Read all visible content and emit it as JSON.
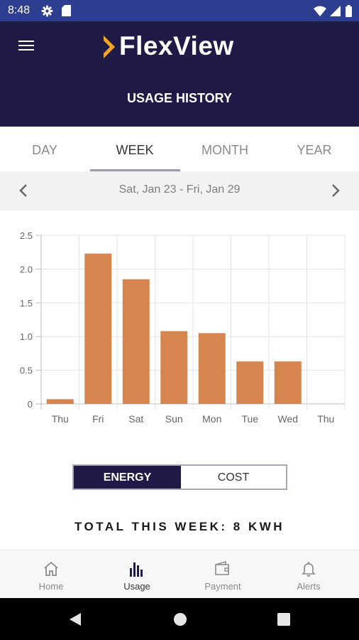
{
  "status_bar": {
    "time": "8:48"
  },
  "header": {
    "logo_text": "FlexView",
    "title": "USAGE HISTORY"
  },
  "tabs": [
    {
      "label": "DAY",
      "active": false
    },
    {
      "label": "WEEK",
      "active": true
    },
    {
      "label": "MONTH",
      "active": false
    },
    {
      "label": "YEAR",
      "active": false
    }
  ],
  "date_range": "Sat, Jan 23 - Fri, Jan 29",
  "chart_data": {
    "type": "bar",
    "categories": [
      "Thu",
      "Fri",
      "Sat",
      "Sun",
      "Mon",
      "Tue",
      "Wed",
      "Thu"
    ],
    "values": [
      0.07,
      2.23,
      1.85,
      1.08,
      1.05,
      0.63,
      0.63,
      null
    ],
    "yticks": [
      "0",
      "0.5",
      "1.0",
      "1.5",
      "2.0",
      "2.5"
    ],
    "ylim": [
      0,
      2.5
    ],
    "grid": true,
    "bar_color": "#d5854d"
  },
  "toggle": {
    "energy_label": "ENERGY",
    "cost_label": "COST",
    "selected": "ENERGY"
  },
  "total": "TOTAL THIS WEEK:  8 KWH",
  "bottom_nav": [
    {
      "label": "Home",
      "icon": "home-icon",
      "active": false
    },
    {
      "label": "Usage",
      "icon": "bar-chart-icon",
      "active": true
    },
    {
      "label": "Payment",
      "icon": "wallet-icon",
      "active": false
    },
    {
      "label": "Alerts",
      "icon": "bell-icon",
      "active": false
    }
  ],
  "colors": {
    "status_bar": "#2d3e91",
    "header": "#201b46",
    "accent": "#f5a623",
    "bar": "#d5854d"
  }
}
